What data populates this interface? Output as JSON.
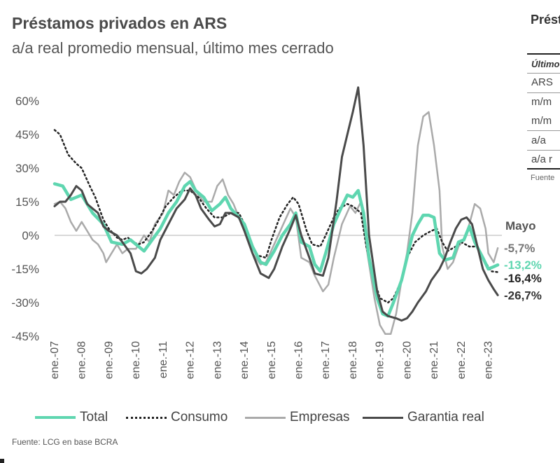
{
  "header": {
    "title": "Préstamos privados en ARS",
    "subtitle": "a/a real promedio mensual, último mes cerrado"
  },
  "side_panel": {
    "title": "Prést",
    "rows": [
      "Último",
      "ARS",
      "m/m",
      "m/m",
      "a/a",
      "a/a r"
    ],
    "source": "Fuente"
  },
  "source": "Fuente: LCG en base BCRA",
  "colors": {
    "total": "#5fd6b0",
    "consumo": "#222222",
    "empresas": "#aaaaaa",
    "garantia": "#4a4a4a",
    "axis": "#cccccc"
  },
  "chart_data": {
    "type": "line",
    "title": "Préstamos privados en ARS",
    "subtitle": "a/a real promedio mensual, último mes cerrado",
    "xlabel": "",
    "ylabel": "",
    "ylim": [
      -45,
      60
    ],
    "yticks": [
      60,
      45,
      30,
      15,
      0,
      -15,
      -30,
      -45
    ],
    "ytick_labels": [
      "60%",
      "45%",
      "30%",
      "15%",
      "0%",
      "-15%",
      "-30%",
      "-45%"
    ],
    "xlim": [
      2007.0,
      2023.45
    ],
    "x_ticks": [
      2007,
      2008,
      2009,
      2010,
      2011,
      2012,
      2013,
      2014,
      2015,
      2016,
      2017,
      2018,
      2019,
      2020,
      2021,
      2022,
      2023
    ],
    "x_tick_labels": [
      "ene.-07",
      "ene.-08",
      "ene.-09",
      "ene.-10",
      "ene.-11",
      "ene.-12",
      "ene.-13",
      "ene.-14",
      "ene.-15",
      "ene.-16",
      "ene.-17",
      "ene.-18",
      "ene.-19",
      "ene.-20",
      "ene.-21",
      "ene.-22",
      "ene.-23"
    ],
    "end_annotation": "Mayo",
    "series": [
      {
        "name": "Total",
        "style": "solid-thick",
        "end_label": "-13,2%",
        "points": [
          [
            2007.0,
            23
          ],
          [
            2007.3,
            22
          ],
          [
            2007.6,
            16
          ],
          [
            2008.0,
            18
          ],
          [
            2008.4,
            10
          ],
          [
            2008.8,
            5
          ],
          [
            2009.1,
            -3
          ],
          [
            2009.5,
            -4
          ],
          [
            2009.8,
            -2
          ],
          [
            2010.1,
            -5
          ],
          [
            2010.3,
            -7
          ],
          [
            2010.6,
            -2
          ],
          [
            2010.9,
            3
          ],
          [
            2011.2,
            10
          ],
          [
            2011.5,
            15
          ],
          [
            2011.8,
            22
          ],
          [
            2012.0,
            24
          ],
          [
            2012.2,
            20
          ],
          [
            2012.5,
            17
          ],
          [
            2012.8,
            11
          ],
          [
            2013.1,
            14
          ],
          [
            2013.3,
            17
          ],
          [
            2013.5,
            12
          ],
          [
            2013.8,
            8
          ],
          [
            2014.0,
            5
          ],
          [
            2014.3,
            -5
          ],
          [
            2014.6,
            -12
          ],
          [
            2014.8,
            -13
          ],
          [
            2015.1,
            -7
          ],
          [
            2015.4,
            0
          ],
          [
            2015.7,
            5
          ],
          [
            2015.9,
            10
          ],
          [
            2016.1,
            -3
          ],
          [
            2016.4,
            -5
          ],
          [
            2016.6,
            -13
          ],
          [
            2016.8,
            -16
          ],
          [
            2017.0,
            -8
          ],
          [
            2017.3,
            5
          ],
          [
            2017.6,
            13
          ],
          [
            2017.8,
            18
          ],
          [
            2018.0,
            17
          ],
          [
            2018.2,
            20
          ],
          [
            2018.4,
            10
          ],
          [
            2018.6,
            -10
          ],
          [
            2018.9,
            -28
          ],
          [
            2019.1,
            -35
          ],
          [
            2019.3,
            -36
          ],
          [
            2019.5,
            -30
          ],
          [
            2019.8,
            -20
          ],
          [
            2020.0,
            -10
          ],
          [
            2020.2,
            0
          ],
          [
            2020.4,
            5
          ],
          [
            2020.6,
            9
          ],
          [
            2020.8,
            9
          ],
          [
            2021.0,
            8
          ],
          [
            2021.2,
            -8
          ],
          [
            2021.4,
            -11
          ],
          [
            2021.7,
            -10
          ],
          [
            2021.9,
            -3
          ],
          [
            2022.1,
            -2
          ],
          [
            2022.3,
            4
          ],
          [
            2022.5,
            -3
          ],
          [
            2022.8,
            -10
          ],
          [
            2023.0,
            -15
          ],
          [
            2023.2,
            -14
          ],
          [
            2023.35,
            -13.2
          ]
        ]
      },
      {
        "name": "Consumo",
        "style": "dotted",
        "end_label": "-16,4%",
        "points": [
          [
            2007.0,
            47
          ],
          [
            2007.2,
            45
          ],
          [
            2007.5,
            36
          ],
          [
            2007.8,
            32
          ],
          [
            2008.0,
            30
          ],
          [
            2008.3,
            22
          ],
          [
            2008.5,
            17
          ],
          [
            2008.8,
            7
          ],
          [
            2009.0,
            3
          ],
          [
            2009.3,
            -1
          ],
          [
            2009.5,
            -2
          ],
          [
            2009.7,
            -1
          ],
          [
            2009.9,
            -3
          ],
          [
            2010.1,
            -4
          ],
          [
            2010.3,
            -3
          ],
          [
            2010.6,
            2
          ],
          [
            2010.8,
            6
          ],
          [
            2011.1,
            13
          ],
          [
            2011.4,
            17
          ],
          [
            2011.7,
            20
          ],
          [
            2012.0,
            20
          ],
          [
            2012.3,
            17
          ],
          [
            2012.6,
            12
          ],
          [
            2012.9,
            8
          ],
          [
            2013.2,
            8
          ],
          [
            2013.5,
            10
          ],
          [
            2013.8,
            10
          ],
          [
            2014.0,
            5
          ],
          [
            2014.3,
            -5
          ],
          [
            2014.5,
            -9
          ],
          [
            2014.8,
            -10
          ],
          [
            2015.0,
            -2
          ],
          [
            2015.3,
            8
          ],
          [
            2015.6,
            14
          ],
          [
            2015.8,
            17
          ],
          [
            2016.0,
            14
          ],
          [
            2016.3,
            2
          ],
          [
            2016.5,
            -4
          ],
          [
            2016.8,
            -5
          ],
          [
            2017.0,
            0
          ],
          [
            2017.3,
            8
          ],
          [
            2017.5,
            12
          ],
          [
            2017.8,
            14
          ],
          [
            2018.0,
            13
          ],
          [
            2018.3,
            10
          ],
          [
            2018.5,
            -5
          ],
          [
            2018.8,
            -20
          ],
          [
            2019.0,
            -28
          ],
          [
            2019.3,
            -30
          ],
          [
            2019.5,
            -28
          ],
          [
            2019.8,
            -20
          ],
          [
            2020.0,
            -10
          ],
          [
            2020.3,
            -3
          ],
          [
            2020.6,
            0
          ],
          [
            2020.9,
            2
          ],
          [
            2021.1,
            3
          ],
          [
            2021.3,
            -3
          ],
          [
            2021.5,
            -7
          ],
          [
            2021.8,
            -5
          ],
          [
            2022.0,
            -3
          ],
          [
            2022.3,
            -5
          ],
          [
            2022.6,
            -5
          ],
          [
            2022.9,
            -12
          ],
          [
            2023.1,
            -16
          ],
          [
            2023.35,
            -16.4
          ]
        ]
      },
      {
        "name": "Empresas",
        "style": "solid-light",
        "end_label": "-5,7%",
        "points": [
          [
            2007.0,
            14
          ],
          [
            2007.2,
            15
          ],
          [
            2007.4,
            12
          ],
          [
            2007.6,
            6
          ],
          [
            2007.8,
            2
          ],
          [
            2008.0,
            6
          ],
          [
            2008.2,
            2
          ],
          [
            2008.4,
            -2
          ],
          [
            2008.6,
            -4
          ],
          [
            2008.8,
            -8
          ],
          [
            2008.9,
            -12
          ],
          [
            2009.1,
            -8
          ],
          [
            2009.3,
            -4
          ],
          [
            2009.5,
            -8
          ],
          [
            2009.7,
            -6
          ],
          [
            2010.0,
            -6
          ],
          [
            2010.3,
            0
          ],
          [
            2010.5,
            -3
          ],
          [
            2010.7,
            5
          ],
          [
            2011.0,
            10
          ],
          [
            2011.2,
            20
          ],
          [
            2011.4,
            18
          ],
          [
            2011.6,
            24
          ],
          [
            2011.8,
            28
          ],
          [
            2012.0,
            26
          ],
          [
            2012.3,
            18
          ],
          [
            2012.5,
            15
          ],
          [
            2012.8,
            15
          ],
          [
            2013.0,
            22
          ],
          [
            2013.2,
            25
          ],
          [
            2013.4,
            18
          ],
          [
            2013.6,
            14
          ],
          [
            2013.8,
            8
          ],
          [
            2014.0,
            3
          ],
          [
            2014.3,
            -8
          ],
          [
            2014.6,
            -13
          ],
          [
            2014.8,
            -12
          ],
          [
            2015.1,
            -4
          ],
          [
            2015.4,
            4
          ],
          [
            2015.7,
            12
          ],
          [
            2015.9,
            8
          ],
          [
            2016.1,
            -10
          ],
          [
            2016.4,
            -12
          ],
          [
            2016.6,
            -18
          ],
          [
            2016.9,
            -25
          ],
          [
            2017.1,
            -22
          ],
          [
            2017.3,
            -10
          ],
          [
            2017.6,
            5
          ],
          [
            2017.9,
            13
          ],
          [
            2018.1,
            10
          ],
          [
            2018.3,
            15
          ],
          [
            2018.5,
            -5
          ],
          [
            2018.8,
            -28
          ],
          [
            2019.0,
            -40
          ],
          [
            2019.2,
            -44
          ],
          [
            2019.4,
            -44
          ],
          [
            2019.6,
            -35
          ],
          [
            2019.8,
            -20
          ],
          [
            2020.0,
            -8
          ],
          [
            2020.2,
            10
          ],
          [
            2020.4,
            40
          ],
          [
            2020.6,
            53
          ],
          [
            2020.8,
            55
          ],
          [
            2021.0,
            40
          ],
          [
            2021.2,
            20
          ],
          [
            2021.3,
            -5
          ],
          [
            2021.5,
            -15
          ],
          [
            2021.7,
            -12
          ],
          [
            2021.9,
            -5
          ],
          [
            2022.1,
            -2
          ],
          [
            2022.3,
            5
          ],
          [
            2022.5,
            14
          ],
          [
            2022.7,
            12
          ],
          [
            2022.9,
            3
          ],
          [
            2023.0,
            -8
          ],
          [
            2023.2,
            -12
          ],
          [
            2023.35,
            -5.7
          ]
        ]
      },
      {
        "name": "Garantia real",
        "style": "solid-dark",
        "end_label": "-26,7%",
        "points": [
          [
            2007.0,
            13
          ],
          [
            2007.2,
            15
          ],
          [
            2007.4,
            15
          ],
          [
            2007.6,
            18
          ],
          [
            2007.8,
            22
          ],
          [
            2008.0,
            20
          ],
          [
            2008.2,
            14
          ],
          [
            2008.4,
            12
          ],
          [
            2008.6,
            10
          ],
          [
            2008.8,
            4
          ],
          [
            2009.0,
            2
          ],
          [
            2009.3,
            0
          ],
          [
            2009.5,
            -3
          ],
          [
            2009.8,
            -8
          ],
          [
            2010.0,
            -16
          ],
          [
            2010.2,
            -17
          ],
          [
            2010.4,
            -15
          ],
          [
            2010.7,
            -10
          ],
          [
            2010.9,
            -2
          ],
          [
            2011.2,
            5
          ],
          [
            2011.5,
            12
          ],
          [
            2011.8,
            16
          ],
          [
            2012.0,
            21
          ],
          [
            2012.2,
            18
          ],
          [
            2012.4,
            12
          ],
          [
            2012.7,
            7
          ],
          [
            2012.9,
            4
          ],
          [
            2013.1,
            5
          ],
          [
            2013.3,
            10
          ],
          [
            2013.5,
            10
          ],
          [
            2013.8,
            8
          ],
          [
            2014.0,
            2
          ],
          [
            2014.3,
            -8
          ],
          [
            2014.6,
            -17
          ],
          [
            2014.9,
            -19
          ],
          [
            2015.1,
            -15
          ],
          [
            2015.4,
            -5
          ],
          [
            2015.7,
            3
          ],
          [
            2015.9,
            9
          ],
          [
            2016.1,
            0
          ],
          [
            2016.4,
            -10
          ],
          [
            2016.6,
            -17
          ],
          [
            2016.9,
            -18
          ],
          [
            2017.1,
            -10
          ],
          [
            2017.4,
            15
          ],
          [
            2017.6,
            35
          ],
          [
            2017.8,
            45
          ],
          [
            2018.0,
            55
          ],
          [
            2018.2,
            66
          ],
          [
            2018.4,
            40
          ],
          [
            2018.6,
            0
          ],
          [
            2018.9,
            -25
          ],
          [
            2019.1,
            -34
          ],
          [
            2019.3,
            -36
          ],
          [
            2019.6,
            -37
          ],
          [
            2019.8,
            -38
          ],
          [
            2020.0,
            -37
          ],
          [
            2020.2,
            -34
          ],
          [
            2020.4,
            -30
          ],
          [
            2020.7,
            -25
          ],
          [
            2020.9,
            -20
          ],
          [
            2021.2,
            -15
          ],
          [
            2021.4,
            -10
          ],
          [
            2021.6,
            -3
          ],
          [
            2021.8,
            3
          ],
          [
            2022.0,
            7
          ],
          [
            2022.2,
            8
          ],
          [
            2022.4,
            5
          ],
          [
            2022.6,
            -5
          ],
          [
            2022.8,
            -15
          ],
          [
            2023.0,
            -20
          ],
          [
            2023.2,
            -24
          ],
          [
            2023.35,
            -26.7
          ]
        ]
      }
    ]
  }
}
